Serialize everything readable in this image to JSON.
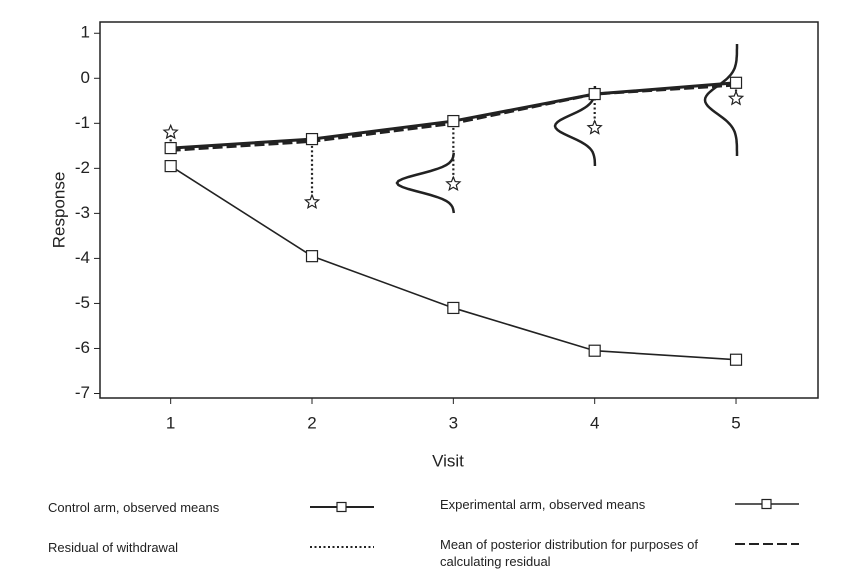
{
  "chart_data": {
    "type": "line",
    "x_label": "Visit",
    "y_label": "Response",
    "x": [
      1,
      2,
      3,
      4,
      5
    ],
    "xlim": [
      0.5,
      5.58
    ],
    "xticks": [
      1,
      2,
      3,
      4,
      5
    ],
    "ylim": [
      -7.1,
      1.25
    ],
    "yticks": [
      -7,
      -6,
      -5,
      -4,
      -3,
      -2,
      -1,
      0,
      1
    ],
    "series": [
      {
        "name": "Control arm, observed means",
        "color": "#222222",
        "line": "solid",
        "marker": "square",
        "values": [
          -1.55,
          -1.35,
          -0.95,
          -0.35,
          -0.1
        ]
      },
      {
        "name": "Experimental arm, observed means",
        "color": "#222222",
        "line": "thin",
        "marker": "square",
        "values": [
          -1.95,
          -3.95,
          -5.1,
          -6.05,
          -6.25
        ]
      },
      {
        "name": "Residual of withdrawal",
        "color": "#222222",
        "line": "dotted",
        "marker": "star",
        "values": [
          -1.2,
          -2.75,
          -2.35,
          -1.1,
          -0.45
        ]
      },
      {
        "name": "Mean of posterior distribution for purposes of calculating residual",
        "color": "#222222",
        "line": "dashed",
        "marker": "none",
        "values": [
          -1.6,
          -1.4,
          -1.0,
          -0.35,
          -0.15
        ]
      }
    ]
  }
}
